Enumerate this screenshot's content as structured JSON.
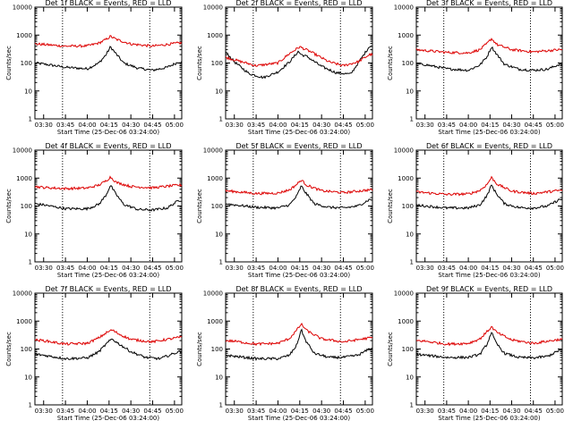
{
  "chart_data": {
    "type": "line",
    "layout": "3x3 grid",
    "x_ticks": [
      "03:30",
      "03:45",
      "04:00",
      "04:15",
      "04:30",
      "04:45",
      "05:00"
    ],
    "y_ticks": [
      "1",
      "10",
      "100",
      "1000",
      "10000"
    ],
    "ylim": [
      1,
      10000
    ],
    "yscale": "log",
    "xlim": [
      "03:24",
      "05:05"
    ],
    "xlabel": "Start Time (25-Dec-06 03:24:00)",
    "ylabel": "Counts/sec",
    "vlines": [
      "03:43",
      "04:43"
    ],
    "series_colors": {
      "events": "#000000",
      "lld": "#dd0000"
    },
    "panels": [
      {
        "title": "Det 1f BLACK = Events, RED = LLD",
        "series": [
          {
            "key": "events",
            "times": [
              "03:24",
              "03:30",
              "03:45",
              "04:00",
              "04:08",
              "04:13",
              "04:16",
              "04:19",
              "04:25",
              "04:35",
              "04:45",
              "04:55",
              "05:03"
            ],
            "values": [
              100,
              92,
              70,
              62,
              100,
              200,
              380,
              240,
              100,
              65,
              55,
              70,
              110
            ]
          },
          {
            "key": "lld",
            "times": [
              "03:24",
              "03:30",
              "03:45",
              "04:00",
              "04:08",
              "04:13",
              "04:16",
              "04:20",
              "04:30",
              "04:45",
              "05:03"
            ],
            "values": [
              480,
              460,
              400,
              410,
              520,
              700,
              900,
              700,
              480,
              400,
              520
            ]
          }
        ]
      },
      {
        "title": "Det 2f BLACK = Events, RED = LLD",
        "series": [
          {
            "key": "events",
            "times": [
              "03:24",
              "03:30",
              "03:40",
              "03:50",
              "04:00",
              "04:08",
              "04:14",
              "04:16",
              "04:20",
              "04:30",
              "04:40",
              "04:50",
              "05:03"
            ],
            "values": [
              250,
              110,
              42,
              30,
              48,
              110,
              260,
              200,
              170,
              75,
              45,
              40,
              400
            ]
          },
          {
            "key": "lld",
            "times": [
              "03:24",
              "03:30",
              "03:45",
              "04:00",
              "04:08",
              "04:15",
              "04:22",
              "04:35",
              "04:45",
              "04:55",
              "05:03"
            ],
            "values": [
              160,
              130,
              80,
              100,
              220,
              380,
              260,
              110,
              80,
              110,
              200
            ]
          }
        ]
      },
      {
        "title": "Det 3f BLACK = Events, RED = LLD",
        "series": [
          {
            "key": "events",
            "times": [
              "03:24",
              "03:30",
              "03:45",
              "04:00",
              "04:08",
              "04:13",
              "04:16",
              "04:19",
              "04:25",
              "04:35",
              "04:45",
              "04:55",
              "05:03"
            ],
            "values": [
              90,
              88,
              62,
              55,
              85,
              170,
              380,
              230,
              90,
              60,
              55,
              60,
              90
            ]
          },
          {
            "key": "lld",
            "times": [
              "03:24",
              "03:30",
              "03:45",
              "04:00",
              "04:08",
              "04:13",
              "04:16",
              "04:20",
              "04:30",
              "04:45",
              "05:03"
            ],
            "values": [
              300,
              280,
              240,
              230,
              300,
              500,
              750,
              450,
              300,
              250,
              300
            ]
          }
        ]
      },
      {
        "title": "Det 4f BLACK = Events, RED = LLD",
        "series": [
          {
            "key": "events",
            "times": [
              "03:24",
              "03:30",
              "03:45",
              "04:00",
              "04:08",
              "04:13",
              "04:16",
              "04:19",
              "04:25",
              "04:35",
              "04:45",
              "04:55",
              "05:03"
            ],
            "values": [
              120,
              110,
              80,
              80,
              115,
              250,
              560,
              300,
              115,
              75,
              72,
              85,
              160
            ]
          },
          {
            "key": "lld",
            "times": [
              "03:24",
              "03:30",
              "03:45",
              "04:00",
              "04:08",
              "04:13",
              "04:16",
              "04:20",
              "04:30",
              "04:45",
              "05:03"
            ],
            "values": [
              500,
              460,
              420,
              440,
              560,
              800,
              1100,
              700,
              500,
              450,
              560
            ]
          }
        ]
      },
      {
        "title": "Det 5f BLACK = Events, RED = LLD",
        "series": [
          {
            "key": "events",
            "times": [
              "03:24",
              "03:30",
              "03:45",
              "04:00",
              "04:08",
              "04:13",
              "04:16",
              "04:19",
              "04:25",
              "04:35",
              "04:45",
              "04:55",
              "05:03"
            ],
            "values": [
              120,
              110,
              90,
              85,
              110,
              230,
              520,
              300,
              120,
              90,
              85,
              100,
              170
            ]
          },
          {
            "key": "lld",
            "times": [
              "03:24",
              "03:30",
              "03:45",
              "04:00",
              "04:08",
              "04:13",
              "04:16",
              "04:20",
              "04:30",
              "04:45",
              "05:03"
            ],
            "values": [
              350,
              330,
              280,
              290,
              380,
              600,
              850,
              550,
              350,
              300,
              380
            ]
          }
        ]
      },
      {
        "title": "Det 6f BLACK = Events, RED = LLD",
        "series": [
          {
            "key": "events",
            "times": [
              "03:24",
              "03:30",
              "03:45",
              "04:00",
              "04:08",
              "04:13",
              "04:16",
              "04:19",
              "04:25",
              "04:35",
              "04:45",
              "04:55",
              "05:03"
            ],
            "values": [
              110,
              100,
              85,
              85,
              110,
              240,
              560,
              300,
              120,
              88,
              85,
              100,
              170
            ]
          },
          {
            "key": "lld",
            "times": [
              "03:24",
              "03:30",
              "03:45",
              "04:00",
              "04:08",
              "04:13",
              "04:16",
              "04:20",
              "04:30",
              "04:45",
              "05:03"
            ],
            "values": [
              320,
              300,
              260,
              270,
              360,
              600,
              1050,
              600,
              340,
              280,
              360
            ]
          }
        ]
      },
      {
        "title": "Det 7f BLACK = Events, RED = LLD",
        "series": [
          {
            "key": "events",
            "times": [
              "03:24",
              "03:30",
              "03:45",
              "04:00",
              "04:08",
              "04:13",
              "04:17",
              "04:22",
              "04:30",
              "04:40",
              "04:50",
              "05:03"
            ],
            "values": [
              65,
              60,
              45,
              48,
              80,
              150,
              230,
              150,
              80,
              50,
              45,
              80
            ]
          },
          {
            "key": "lld",
            "times": [
              "03:24",
              "03:30",
              "03:45",
              "04:00",
              "04:08",
              "04:13",
              "04:17",
              "04:22",
              "04:30",
              "04:45",
              "05:03"
            ],
            "values": [
              210,
              200,
              150,
              160,
              250,
              380,
              480,
              340,
              220,
              180,
              260
            ]
          }
        ]
      },
      {
        "title": "Det 8f BLACK = Events, RED = LLD",
        "series": [
          {
            "key": "events",
            "times": [
              "03:24",
              "03:30",
              "03:45",
              "04:00",
              "04:08",
              "04:13",
              "04:16",
              "04:19",
              "04:25",
              "04:35",
              "04:45",
              "04:55",
              "05:03"
            ],
            "values": [
              60,
              55,
              45,
              45,
              60,
              140,
              500,
              200,
              70,
              50,
              50,
              60,
              100
            ]
          },
          {
            "key": "lld",
            "times": [
              "03:24",
              "03:30",
              "03:45",
              "04:00",
              "04:08",
              "04:13",
              "04:16",
              "04:20",
              "04:30",
              "04:45",
              "05:03"
            ],
            "values": [
              200,
              190,
              150,
              160,
              240,
              480,
              780,
              450,
              230,
              180,
              250
            ]
          }
        ]
      },
      {
        "title": "Det 9f BLACK = Events, RED = LLD",
        "series": [
          {
            "key": "events",
            "times": [
              "03:24",
              "03:30",
              "03:45",
              "04:00",
              "04:08",
              "04:13",
              "04:16",
              "04:19",
              "04:25",
              "04:35",
              "04:45",
              "04:55",
              "05:03"
            ],
            "values": [
              65,
              60,
              50,
              50,
              65,
              150,
              400,
              170,
              70,
              50,
              48,
              55,
              90
            ]
          },
          {
            "key": "lld",
            "times": [
              "03:24",
              "03:30",
              "03:45",
              "04:00",
              "04:08",
              "04:13",
              "04:16",
              "04:20",
              "04:30",
              "04:45",
              "05:03"
            ],
            "values": [
              200,
              190,
              150,
              160,
              230,
              420,
              620,
              380,
              210,
              160,
              220
            ]
          }
        ]
      }
    ]
  }
}
